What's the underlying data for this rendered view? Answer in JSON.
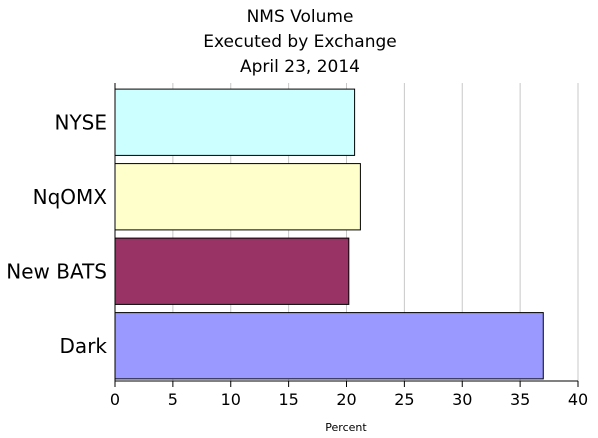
{
  "chart_data": {
    "type": "bar",
    "orientation": "horizontal",
    "title": [
      "NMS Volume",
      "Executed by Exchange",
      "April 23, 2014"
    ],
    "categories": [
      "NYSE",
      "NqOMX",
      "New BATS",
      "Dark"
    ],
    "values": [
      20.7,
      21.2,
      20.2,
      37.0
    ],
    "colors": [
      "#ccffff",
      "#ffffcc",
      "#993366",
      "#9999ff"
    ],
    "xlabel": "Percent",
    "ylabel": "",
    "xlim": [
      0,
      40
    ],
    "xticks": [
      0,
      5,
      10,
      15,
      20,
      25,
      30,
      35,
      40
    ],
    "grid": "vertical",
    "legend": "none"
  }
}
